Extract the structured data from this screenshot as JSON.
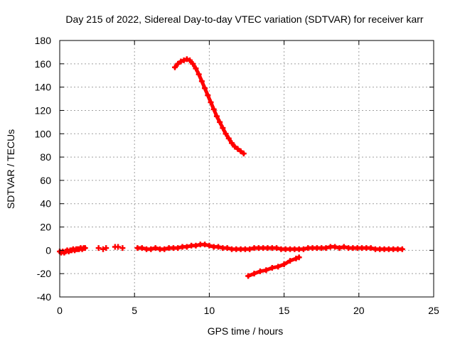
{
  "chart_data": {
    "type": "scatter",
    "title": "Day 215 of 2022, Sidereal Day-to-day VTEC variation (SDTVAR) for receiver karr",
    "xlabel": "GPS time / hours",
    "ylabel": "SDTVAR / TECUs",
    "xlim": [
      0,
      25
    ],
    "ylim": [
      -40,
      180
    ],
    "xticks": [
      0,
      5,
      10,
      15,
      20,
      25
    ],
    "yticks": [
      -40,
      -20,
      0,
      20,
      40,
      60,
      80,
      100,
      120,
      140,
      160,
      180
    ],
    "grid": true,
    "marker": "plus",
    "color": "#ff0000",
    "series": [
      {
        "x": [
          7.7,
          7.9,
          8.1,
          8.3,
          8.5,
          8.7,
          8.9,
          9.1,
          9.3,
          9.5,
          9.7,
          9.9,
          10.1,
          10.3,
          10.5,
          10.7,
          10.9,
          11.1,
          11.3,
          11.5,
          11.7,
          11.9,
          12.1,
          12.3
        ],
        "y": [
          157,
          160,
          162,
          163,
          164,
          163,
          160,
          156,
          151,
          145,
          139,
          133,
          127,
          121,
          115,
          110,
          105,
          100,
          96,
          92,
          89,
          87,
          85,
          83
        ]
      },
      {
        "x": [
          0.0,
          0.1,
          0.2,
          0.3,
          0.4,
          0.5,
          0.6,
          0.7,
          0.8,
          0.9,
          1.0,
          1.1,
          1.2,
          1.3,
          1.4,
          1.5,
          1.6,
          1.7
        ],
        "y": [
          -1,
          -2,
          -1,
          -2,
          -1,
          0,
          -1,
          0,
          0,
          1,
          0,
          1,
          1,
          1,
          2,
          1,
          2,
          2
        ]
      },
      {
        "x": [
          2.6,
          2.9,
          3.1
        ],
        "y": [
          2,
          1,
          2
        ]
      },
      {
        "x": [
          3.7,
          3.9,
          4.2
        ],
        "y": [
          3,
          3,
          2
        ]
      },
      {
        "x": [
          5.2,
          5.5,
          5.8,
          6.1,
          6.4,
          6.7,
          7.0,
          7.3,
          7.6,
          7.9,
          8.2,
          8.5,
          8.8,
          9.1,
          9.4,
          9.7,
          10.0,
          10.3,
          10.6,
          10.9,
          11.2,
          11.5,
          11.8,
          12.1,
          12.4,
          12.7,
          13.0,
          13.3,
          13.6,
          13.9,
          14.2,
          14.5,
          14.8,
          15.1,
          15.4,
          15.7,
          16.0,
          16.3,
          16.6,
          16.9,
          17.2,
          17.5,
          17.8,
          18.1,
          18.4,
          18.7,
          19.0,
          19.3,
          19.6,
          19.9,
          20.2,
          20.5,
          20.8,
          21.1,
          21.4,
          21.7,
          22.0,
          22.3,
          22.6,
          22.9
        ],
        "y": [
          2,
          2,
          1,
          1,
          2,
          1,
          1,
          2,
          2,
          2,
          3,
          3,
          4,
          4,
          5,
          5,
          4,
          3,
          3,
          2,
          2,
          1,
          1,
          1,
          1,
          1,
          2,
          2,
          2,
          2,
          2,
          2,
          1,
          1,
          1,
          1,
          1,
          1,
          2,
          2,
          2,
          2,
          2,
          3,
          3,
          2,
          3,
          2,
          2,
          2,
          2,
          2,
          2,
          1,
          1,
          1,
          1,
          1,
          1,
          1
        ]
      },
      {
        "x": [
          12.6,
          13.0,
          13.4,
          13.8,
          14.2,
          14.6,
          15.0,
          15.4,
          15.8,
          16.0
        ],
        "y": [
          -22,
          -20,
          -18,
          -17,
          -15,
          -14,
          -12,
          -9,
          -7,
          -6
        ]
      }
    ]
  }
}
